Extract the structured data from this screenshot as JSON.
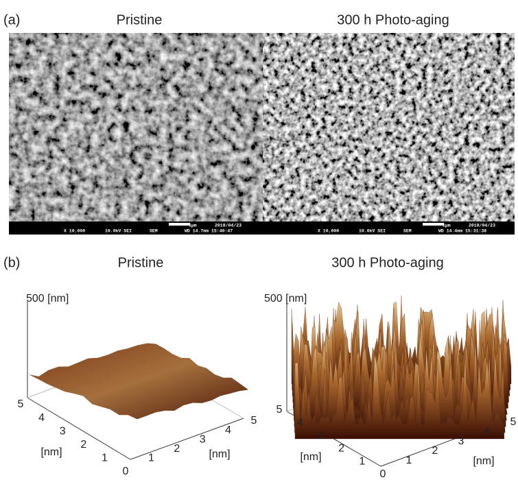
{
  "panel_a": {
    "label": "(a)",
    "images": [
      {
        "title": "Pristine",
        "info": {
          "magnification": "X 10,000",
          "voltage": "10.0kV SEI",
          "detector": "SEM",
          "scale": "1μm",
          "date": "2018/04/23",
          "wd_time": "WD 14.7mm 15:40:47"
        }
      },
      {
        "title": "300 h Photo-aging",
        "info": {
          "magnification": "X 10,000",
          "voltage": "10.0kV SEI",
          "detector": "SEM",
          "scale": "1μm",
          "date": "2018/04/23",
          "wd_time": "WD 14.4mm 15:31:38"
        }
      }
    ]
  },
  "panel_b": {
    "label": "(b)",
    "plots": [
      {
        "title": "Pristine",
        "z_label": "500 [nm]",
        "y_label": "[nm]",
        "x_label": "[nm]",
        "y_ticks": [
          0,
          1,
          2,
          3,
          4,
          5
        ],
        "x_ticks": [
          1,
          2,
          3,
          4,
          5
        ]
      },
      {
        "title": "300 h Photo-aging",
        "z_label": "500 [nm]",
        "y_label": "[nm]",
        "x_label": "[nm]",
        "y_ticks": [
          0,
          1,
          2,
          3,
          4,
          5
        ],
        "x_ticks": [
          1,
          2,
          3,
          4,
          5
        ]
      }
    ]
  }
}
